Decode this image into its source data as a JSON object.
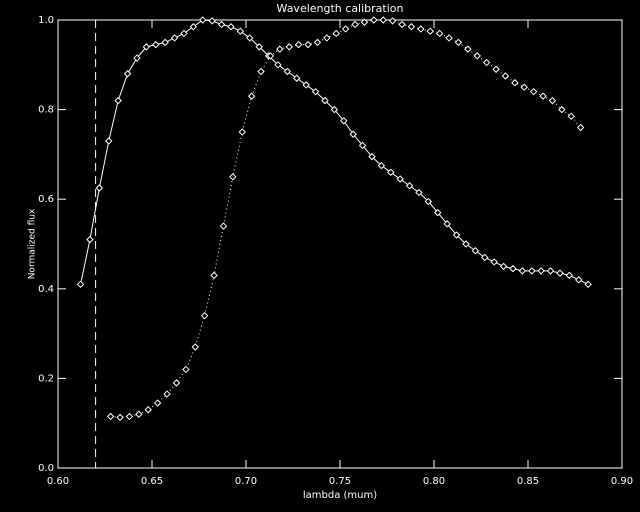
{
  "chart_data": {
    "type": "line",
    "title": "Wavelength calibration",
    "xlabel": "lambda (mum)",
    "ylabel": "Normalized flux",
    "xlim": [
      0.6,
      0.9
    ],
    "ylim": [
      0,
      1
    ],
    "xticks": [
      {
        "value": 0.6,
        "label": "0.60"
      },
      0.65,
      {
        "value": 0.7,
        "label": "0.70"
      },
      0.75,
      {
        "value": 0.8,
        "label": "0.80"
      },
      0.85,
      {
        "value": 0.9,
        "label": "0.90"
      }
    ],
    "yticks": [
      {
        "value": 0,
        "label": "0.0"
      },
      0.2,
      0.4,
      0.6,
      0.8,
      {
        "value": 1,
        "label": "1.0"
      }
    ],
    "vlines": [
      0.62
    ],
    "series": [
      {
        "color": "#ffffff",
        "linestyle": "solid",
        "marker": "diamond",
        "x": [
          0.612,
          0.617,
          0.622,
          0.627,
          0.632,
          0.637,
          0.642,
          0.647,
          0.652,
          0.657,
          0.662,
          0.667,
          0.672,
          0.677,
          0.682,
          0.687,
          0.692,
          0.697,
          0.702,
          0.707,
          0.712,
          0.717,
          0.722,
          0.727,
          0.732,
          0.737,
          0.742,
          0.747,
          0.752,
          0.757,
          0.762,
          0.767,
          0.772,
          0.777,
          0.782,
          0.787,
          0.792,
          0.797,
          0.802,
          0.807,
          0.812,
          0.817,
          0.822,
          0.827,
          0.832,
          0.837,
          0.842,
          0.847,
          0.852,
          0.857,
          0.862,
          0.867,
          0.872,
          0.877,
          0.882
        ],
        "values": [
          0.41,
          0.51,
          0.625,
          0.73,
          0.82,
          0.88,
          0.915,
          0.94,
          0.945,
          0.95,
          0.96,
          0.97,
          0.985,
          1.0,
          0.998,
          0.99,
          0.985,
          0.975,
          0.96,
          0.94,
          0.92,
          0.9,
          0.885,
          0.87,
          0.855,
          0.84,
          0.82,
          0.8,
          0.775,
          0.745,
          0.72,
          0.695,
          0.675,
          0.66,
          0.645,
          0.63,
          0.615,
          0.595,
          0.57,
          0.545,
          0.52,
          0.5,
          0.485,
          0.47,
          0.46,
          0.45,
          0.445,
          0.44,
          0.44,
          0.44,
          0.44,
          0.435,
          0.43,
          0.42,
          0.41
        ]
      },
      {
        "color": "#ffffff",
        "linestyle": "dotted",
        "marker": "diamond",
        "x": [
          0.628,
          0.633,
          0.638,
          0.643,
          0.648,
          0.653,
          0.658,
          0.663,
          0.668,
          0.673,
          0.678,
          0.683,
          0.688,
          0.693,
          0.698,
          0.703,
          0.708,
          0.713,
          0.718,
          0.723,
          0.728,
          0.733,
          0.738,
          0.743,
          0.748,
          0.753,
          0.758,
          0.763,
          0.768,
          0.773,
          0.778,
          0.783,
          0.788,
          0.793,
          0.798,
          0.803,
          0.808,
          0.813,
          0.818,
          0.823,
          0.828,
          0.833,
          0.838,
          0.843,
          0.848,
          0.853,
          0.858,
          0.863,
          0.868,
          0.873,
          0.878
        ],
        "values": [
          0.115,
          0.113,
          0.115,
          0.12,
          0.13,
          0.145,
          0.165,
          0.19,
          0.22,
          0.27,
          0.34,
          0.43,
          0.54,
          0.65,
          0.75,
          0.83,
          0.885,
          0.92,
          0.935,
          0.94,
          0.945,
          0.945,
          0.95,
          0.96,
          0.97,
          0.98,
          0.99,
          0.995,
          1.0,
          1.0,
          0.998,
          0.99,
          0.985,
          0.98,
          0.975,
          0.97,
          0.96,
          0.95,
          0.935,
          0.92,
          0.905,
          0.89,
          0.875,
          0.86,
          0.85,
          0.84,
          0.83,
          0.82,
          0.8,
          0.785,
          0.76
        ]
      }
    ]
  }
}
